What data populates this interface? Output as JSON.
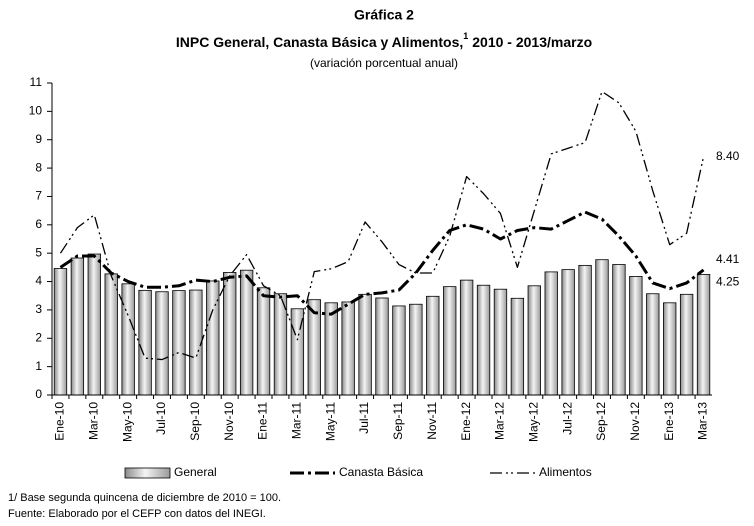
{
  "chart_data": {
    "type": "bar_line",
    "label": "Gráfica 2",
    "title": "INPC General, Canasta Básica y Alimentos,",
    "title_note": "1",
    "title_period": "2010 - 2013/marzo",
    "subtitle": "(variación porcentual anual)",
    "categories": [
      "Ene-10",
      null,
      "Mar-10",
      null,
      "May-10",
      null,
      "Jul-10",
      null,
      "Sep-10",
      null,
      "Nov-10",
      null,
      "Ene-11",
      null,
      "Mar-11",
      null,
      "May-11",
      null,
      "Jul-11",
      null,
      "Sep-11",
      null,
      "Nov-11",
      null,
      "Ene-12",
      null,
      "Mar-12",
      null,
      "May-12",
      null,
      "Jul-12",
      null,
      "Sep-12",
      null,
      "Nov-12",
      null,
      "Ene-13",
      null,
      "Mar-13"
    ],
    "series": [
      {
        "name": "General",
        "kind": "bar",
        "color": "#c8c8c8",
        "values": [
          4.46,
          4.83,
          4.97,
          4.27,
          3.92,
          3.69,
          3.64,
          3.68,
          3.7,
          4.02,
          4.32,
          4.4,
          3.78,
          3.57,
          3.04,
          3.36,
          3.25,
          3.28,
          3.55,
          3.42,
          3.14,
          3.2,
          3.48,
          3.82,
          4.05,
          3.87,
          3.73,
          3.41,
          3.85,
          4.34,
          4.42,
          4.57,
          4.77,
          4.6,
          4.18,
          3.57,
          3.25,
          3.55,
          4.25
        ],
        "value_labels": [
          null,
          null,
          null,
          null,
          null,
          null,
          null,
          null,
          null,
          null,
          null,
          null,
          null,
          null,
          null,
          null,
          null,
          null,
          null,
          null,
          null,
          null,
          null,
          null,
          null,
          null,
          null,
          null,
          null,
          null,
          null,
          null,
          null,
          null,
          null,
          null,
          null,
          null,
          "4.25"
        ]
      },
      {
        "name": "Canasta Básica",
        "kind": "line",
        "line_style": "dashdot",
        "color": "#000000",
        "values": [
          4.5,
          4.9,
          4.9,
          4.3,
          4.0,
          3.8,
          3.8,
          3.85,
          4.05,
          4.0,
          4.15,
          4.2,
          3.5,
          3.45,
          3.5,
          2.9,
          2.85,
          3.2,
          3.55,
          3.6,
          3.7,
          4.3,
          5.1,
          5.8,
          6.0,
          5.85,
          5.5,
          5.8,
          5.9,
          5.85,
          6.15,
          6.45,
          6.2,
          5.6,
          4.9,
          3.95,
          3.75,
          3.95,
          4.41
        ],
        "value_labels": [
          null,
          null,
          null,
          null,
          null,
          null,
          null,
          null,
          null,
          null,
          null,
          null,
          null,
          null,
          null,
          null,
          null,
          null,
          null,
          null,
          null,
          null,
          null,
          null,
          null,
          null,
          null,
          null,
          null,
          null,
          null,
          null,
          null,
          null,
          null,
          null,
          null,
          null,
          "4.41"
        ]
      },
      {
        "name": "Alimentos",
        "kind": "line",
        "line_style": "dashdotdot",
        "color": "#000000",
        "values": [
          5.0,
          5.9,
          6.35,
          4.2,
          2.8,
          1.3,
          1.25,
          1.5,
          1.3,
          3.0,
          4.2,
          4.95,
          3.85,
          3.5,
          1.95,
          4.35,
          4.45,
          4.7,
          6.1,
          5.4,
          4.6,
          4.3,
          4.3,
          5.6,
          7.7,
          7.1,
          6.4,
          4.5,
          6.5,
          8.5,
          8.7,
          8.9,
          10.7,
          10.3,
          9.3,
          7.2,
          5.3,
          5.7,
          8.4
        ],
        "value_labels": [
          null,
          null,
          null,
          null,
          null,
          null,
          null,
          null,
          null,
          null,
          null,
          null,
          null,
          null,
          null,
          null,
          null,
          null,
          null,
          null,
          null,
          null,
          null,
          null,
          null,
          null,
          null,
          null,
          null,
          null,
          null,
          null,
          null,
          null,
          null,
          null,
          null,
          null,
          "8.40"
        ]
      }
    ],
    "ylim": [
      0,
      11
    ],
    "yticks": [
      0,
      1,
      2,
      3,
      4,
      5,
      6,
      7,
      8,
      9,
      10,
      11
    ],
    "grid": false,
    "legend": "bottom",
    "notes": [
      "1/ Base segunda quincena de diciembre de 2010 = 100.",
      "Fuente: Elaborado por el CEFP con datos del INEGI."
    ]
  }
}
